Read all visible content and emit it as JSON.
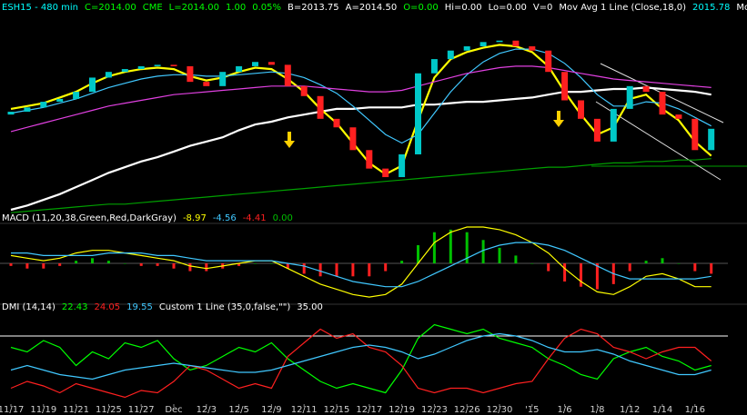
{
  "chart_data": [
    {
      "type": "candlestick",
      "legend": [
        {
          "text": "ESH15 - 480 min",
          "color": "#00ffff"
        },
        {
          "text": "C=2014.00",
          "color": "#00ff00"
        },
        {
          "text": "CME",
          "color": "#00ff00"
        },
        {
          "text": "L=2014.00",
          "color": "#00ff00"
        },
        {
          "text": "1.00",
          "color": "#00ff00"
        },
        {
          "text": "0.05%",
          "color": "#00ff00"
        },
        {
          "text": "B=2013.75",
          "color": "#ffffff"
        },
        {
          "text": "A=2014.50",
          "color": "#ffffff"
        },
        {
          "text": "O=0.00",
          "color": "#00ff00"
        },
        {
          "text": "Hi=0.00",
          "color": "#ffffff"
        },
        {
          "text": "Lo=0.00",
          "color": "#ffffff"
        },
        {
          "text": "V=0",
          "color": "#ffffff"
        },
        {
          "text": "Mov Avg 1 Line (Close,18,0)",
          "color": "#ffffff"
        },
        {
          "text": "2015.78",
          "color": "#00ffff"
        },
        {
          "text": "Mov Avg 1 Line",
          "color": "#ffffff"
        }
      ],
      "ylim": [
        1950,
        2095
      ],
      "up_color": "#00c8c8",
      "down_color": "#ff2020",
      "open": [
        2024,
        2026,
        2029,
        2033,
        2035,
        2040,
        2050,
        2054,
        2056,
        2058,
        2059,
        2058,
        2047,
        2044,
        2054,
        2058,
        2061,
        2059,
        2044,
        2037,
        2021,
        2015,
        1999,
        1986,
        1980,
        1996,
        2053,
        2063,
        2069,
        2072,
        2075,
        2076,
        2072,
        2069,
        2054,
        2034,
        2021,
        2005,
        2028,
        2044,
        2040,
        2024,
        2021,
        1999
      ],
      "close": [
        2026,
        2029,
        2033,
        2035,
        2040,
        2050,
        2054,
        2056,
        2058,
        2059,
        2058,
        2047,
        2044,
        2054,
        2058,
        2061,
        2059,
        2044,
        2037,
        2021,
        2015,
        1999,
        1986,
        1980,
        1996,
        2053,
        2063,
        2069,
        2072,
        2075,
        2076,
        2072,
        2069,
        2054,
        2034,
        2021,
        2005,
        2028,
        2044,
        2040,
        2024,
        2021,
        1999,
        2014
      ],
      "series": [
        {
          "color": "#ffffff",
          "values": [
            1957,
            1960,
            1964,
            1968,
            1973,
            1978,
            1983,
            1987,
            1991,
            1994,
            1998,
            2002,
            2005,
            2008,
            2013,
            2017,
            2019,
            2022,
            2024,
            2026,
            2028,
            2028,
            2029,
            2029,
            2029,
            2031,
            2031,
            2032,
            2033,
            2033,
            2034,
            2035,
            2036,
            2038,
            2040,
            2040,
            2041,
            2042,
            2042,
            2043,
            2042,
            2041,
            2040,
            2038
          ]
        },
        {
          "color": "#ffff00",
          "values": [
            2028,
            2030,
            2032,
            2036,
            2040,
            2046,
            2051,
            2054,
            2056,
            2057,
            2056,
            2051,
            2048,
            2050,
            2054,
            2057,
            2056,
            2049,
            2040,
            2028,
            2018,
            2004,
            1990,
            1982,
            1988,
            2020,
            2050,
            2063,
            2068,
            2071,
            2073,
            2072,
            2068,
            2058,
            2040,
            2024,
            2010,
            2015,
            2035,
            2038,
            2028,
            2020,
            2005,
            1995
          ]
        },
        {
          "color": "#40c8ff",
          "values": [
            2025,
            2027,
            2029,
            2032,
            2035,
            2039,
            2043,
            2046,
            2049,
            2051,
            2052,
            2052,
            2051,
            2051,
            2052,
            2053,
            2054,
            2053,
            2050,
            2045,
            2039,
            2030,
            2020,
            2010,
            2004,
            2010,
            2025,
            2040,
            2052,
            2061,
            2067,
            2070,
            2070,
            2067,
            2060,
            2050,
            2038,
            2030,
            2030,
            2033,
            2032,
            2028,
            2022,
            2016
          ]
        },
        {
          "color": "#e040e0",
          "values": [
            2012,
            2015,
            2018,
            2021,
            2024,
            2027,
            2030,
            2032,
            2034,
            2036,
            2038,
            2039,
            2040,
            2041,
            2042,
            2043,
            2044,
            2044,
            2044,
            2043,
            2042,
            2041,
            2040,
            2040,
            2041,
            2044,
            2047,
            2050,
            2053,
            2055,
            2057,
            2058,
            2058,
            2057,
            2055,
            2053,
            2051,
            2049,
            2048,
            2047,
            2046,
            2045,
            2044,
            2043
          ]
        },
        {
          "color": "#00a000",
          "values": [
            1955,
            1956,
            1957,
            1958,
            1959,
            1960,
            1961,
            1961,
            1962,
            1963,
            1964,
            1965,
            1966,
            1967,
            1968,
            1969,
            1970,
            1971,
            1972,
            1973,
            1974,
            1975,
            1976,
            1977,
            1978,
            1979,
            1980,
            1981,
            1982,
            1983,
            1984,
            1985,
            1986,
            1987,
            1987,
            1988,
            1989,
            1990,
            1990,
            1991,
            1991,
            1992,
            1992,
            1993
          ]
        }
      ]
    },
    {
      "type": "bar",
      "legend": [
        {
          "text": "MACD (11,20,38,Green,Red,DarkGray)",
          "color": "#ffffff"
        },
        {
          "text": "-8.97",
          "color": "#ffff00"
        },
        {
          "text": "-4.56",
          "color": "#40c8ff"
        },
        {
          "text": "-4.41",
          "color": "#ff2020"
        },
        {
          "text": "0.00",
          "color": "#00c000"
        }
      ],
      "ylim": [
        -14,
        14
      ],
      "up_color": "#00c000",
      "down_color": "#ff2020",
      "values": [
        -1,
        -2,
        -2,
        -1,
        1,
        2,
        1,
        0,
        -1,
        -1,
        -2,
        -3,
        -3,
        -2,
        -1,
        0,
        0,
        -2,
        -4,
        -5,
        -5,
        -5,
        -5,
        -3,
        1,
        7,
        12,
        13,
        12,
        9,
        6,
        3,
        0,
        -3,
        -7,
        -9,
        -10,
        -8,
        -3,
        1,
        2,
        0,
        -3,
        -4
      ],
      "series": [
        {
          "color": "#ffff00",
          "values": [
            3,
            2,
            1,
            2,
            4,
            5,
            5,
            4,
            3,
            2,
            1,
            -1,
            -2,
            -1,
            0,
            1,
            1,
            -2,
            -5,
            -8,
            -10,
            -12,
            -13,
            -12,
            -8,
            0,
            8,
            12,
            14,
            14,
            13,
            11,
            8,
            4,
            -2,
            -7,
            -11,
            -12,
            -9,
            -5,
            -4,
            -6,
            -9,
            -9
          ]
        },
        {
          "color": "#40c8ff",
          "values": [
            4,
            4,
            3,
            3,
            3,
            3,
            4,
            4,
            4,
            3,
            3,
            2,
            1,
            1,
            1,
            1,
            1,
            0,
            -1,
            -3,
            -5,
            -7,
            -8,
            -9,
            -9,
            -7,
            -4,
            -1,
            2,
            5,
            7,
            8,
            8,
            7,
            5,
            2,
            -1,
            -4,
            -6,
            -6,
            -6,
            -6,
            -6,
            -5
          ]
        }
      ]
    },
    {
      "type": "line",
      "legend": [
        {
          "text": "DMI (14,14)",
          "color": "#ffffff"
        },
        {
          "text": "22.43",
          "color": "#00ff00"
        },
        {
          "text": "24.05",
          "color": "#ff2020"
        },
        {
          "text": "19.55",
          "color": "#40c8ff"
        },
        {
          "text": "Custom 1 Line (35,0,false,\"\")",
          "color": "#ffffff"
        },
        {
          "text": "35.00",
          "color": "#ffffff"
        }
      ],
      "ylim": [
        5,
        45
      ],
      "hline": 35,
      "hline_color": "#ffffff",
      "categories": [
        "11/17",
        null,
        "11/19",
        null,
        "11/21",
        null,
        "11/25",
        null,
        "11/27",
        null,
        "Dec",
        null,
        "12/3",
        null,
        "12/5",
        null,
        "12/9",
        null,
        "12/11",
        null,
        "12/15",
        null,
        "12/17",
        null,
        "12/19",
        null,
        "12/23",
        null,
        "12/26",
        null,
        "12/30",
        null,
        "'15",
        null,
        "1/6",
        null,
        "1/8",
        null,
        "1/12",
        null,
        "1/14",
        null,
        "1/16",
        null
      ],
      "series": [
        {
          "color": "#00ff00",
          "values": [
            30,
            28,
            33,
            30,
            22,
            28,
            25,
            32,
            30,
            33,
            25,
            20,
            22,
            26,
            30,
            28,
            32,
            25,
            20,
            15,
            12,
            14,
            12,
            10,
            20,
            34,
            40,
            38,
            36,
            38,
            34,
            32,
            30,
            25,
            22,
            18,
            16,
            25,
            28,
            30,
            26,
            24,
            20,
            22
          ]
        },
        {
          "color": "#ff2020",
          "values": [
            12,
            15,
            13,
            10,
            14,
            12,
            10,
            8,
            11,
            10,
            15,
            22,
            20,
            16,
            12,
            14,
            12,
            26,
            32,
            38,
            34,
            36,
            30,
            28,
            22,
            12,
            10,
            12,
            12,
            10,
            12,
            14,
            15,
            25,
            34,
            38,
            36,
            30,
            28,
            25,
            28,
            30,
            30,
            24
          ]
        },
        {
          "color": "#40c8ff",
          "values": [
            20,
            22,
            20,
            18,
            17,
            16,
            18,
            20,
            21,
            22,
            23,
            22,
            21,
            20,
            19,
            19,
            20,
            22,
            24,
            26,
            28,
            30,
            31,
            30,
            28,
            25,
            27,
            30,
            33,
            35,
            36,
            35,
            33,
            30,
            28,
            28,
            29,
            27,
            24,
            22,
            20,
            18,
            18,
            20
          ]
        }
      ]
    }
  ]
}
